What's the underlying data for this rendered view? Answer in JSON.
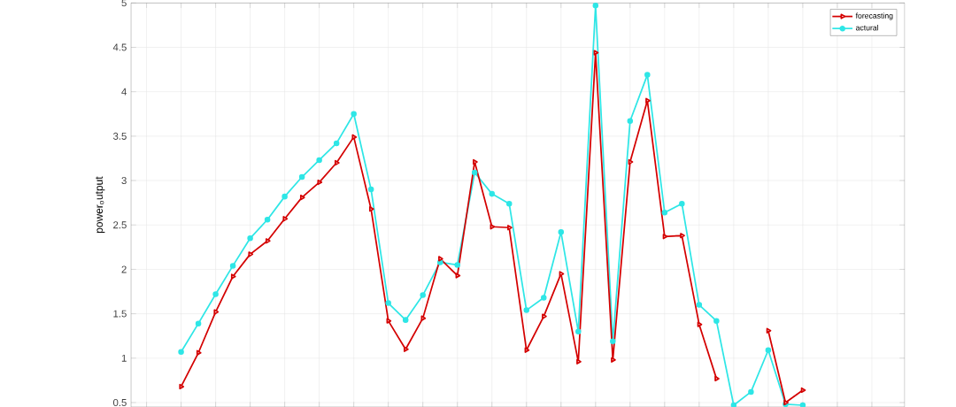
{
  "chart_data": {
    "type": "line",
    "ylabel": "power$_{o}$utput",
    "categories": [
      null,
      null,
      null,
      null,
      null,
      null,
      null,
      null,
      null,
      null,
      null,
      null,
      null,
      null,
      null,
      null,
      null,
      null,
      null,
      null,
      null,
      null,
      null,
      null,
      null,
      null,
      null,
      null,
      null,
      null,
      null,
      null,
      null,
      null,
      null,
      null,
      null,
      null,
      null,
      null,
      null,
      null,
      null,
      null
    ],
    "series": [
      {
        "name": "forecasting",
        "color": "#d40000",
        "marker": "triangle",
        "values": [
          null,
          null,
          0.68,
          1.06,
          1.52,
          1.92,
          2.17,
          2.32,
          2.57,
          2.81,
          2.98,
          3.2,
          3.49,
          2.68,
          1.42,
          1.1,
          1.45,
          2.12,
          1.93,
          3.21,
          2.48,
          2.47,
          1.09,
          1.47,
          1.95,
          0.96,
          4.44,
          0.98,
          3.21,
          3.9,
          2.37,
          2.38,
          1.38,
          0.77,
          null,
          null,
          1.31,
          0.5,
          0.64,
          null,
          null,
          null,
          null,
          null
        ]
      },
      {
        "name": "actural",
        "color": "#2ee6e6",
        "marker": "circle",
        "values": [
          null,
          null,
          1.07,
          1.39,
          1.72,
          2.04,
          2.35,
          2.56,
          2.82,
          3.04,
          3.23,
          3.42,
          3.75,
          2.9,
          1.62,
          1.43,
          1.71,
          2.08,
          2.05,
          3.09,
          2.85,
          2.74,
          1.54,
          1.68,
          2.42,
          1.3,
          4.97,
          1.19,
          3.67,
          4.19,
          2.64,
          2.74,
          1.6,
          1.42,
          0.47,
          0.62,
          1.09,
          0.48,
          0.47,
          null,
          null,
          null,
          null,
          null
        ]
      }
    ],
    "ylim": [
      0.45,
      5
    ],
    "yticks": [
      0.5,
      1,
      1.5,
      2,
      2.5,
      3,
      3.5,
      4,
      4.5,
      5
    ],
    "tick_labels": "y",
    "grid": true,
    "legend": "top right",
    "line_style": "solid"
  }
}
